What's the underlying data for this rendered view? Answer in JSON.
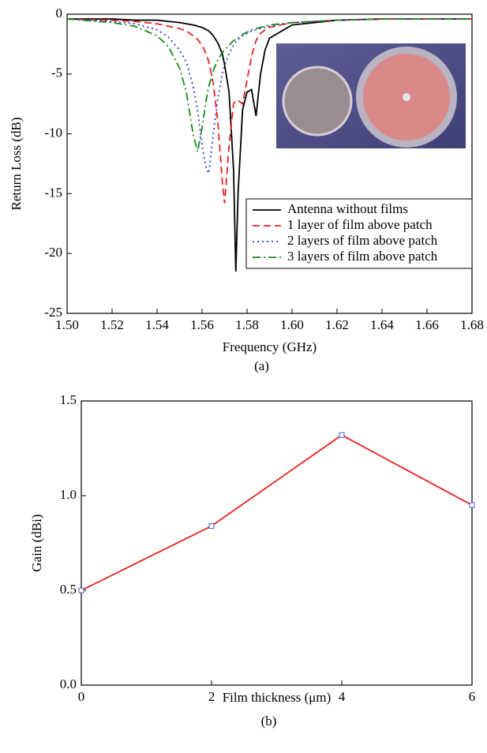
{
  "chart_data": [
    {
      "type": "line",
      "x_label": "Frequency (GHz)",
      "y_label": "Return Loss (dB)",
      "caption": "(a)",
      "x": [
        1.5,
        1.52,
        1.53,
        1.54,
        1.545,
        1.55,
        1.553,
        1.556,
        1.558,
        1.56,
        1.562,
        1.563,
        1.565,
        1.567,
        1.569,
        1.57,
        1.572,
        1.574,
        1.575,
        1.576,
        1.578,
        1.58,
        1.582,
        1.584,
        1.586,
        1.588,
        1.59,
        1.6,
        1.62,
        1.64,
        1.66,
        1.68
      ],
      "series": [
        {
          "name": "Antenna without films",
          "color": "#000000",
          "line_style": "solid",
          "values": [
            -0.4,
            -0.4,
            -0.5,
            -0.5,
            -0.6,
            -0.7,
            -0.8,
            -0.9,
            -1.0,
            -1.1,
            -1.3,
            -1.4,
            -1.8,
            -2.4,
            -3.3,
            -4.2,
            -6.5,
            -13,
            -21.5,
            -15,
            -8,
            -6.5,
            -6.3,
            -8.5,
            -5,
            -3,
            -2,
            -0.9,
            -0.5,
            -0.4,
            -0.4,
            -0.4
          ]
        },
        {
          "name": "1 layer of film above patch",
          "color": "#e8221e",
          "line_style": "dashed",
          "values": [
            -0.4,
            -0.5,
            -0.6,
            -0.8,
            -1.0,
            -1.2,
            -1.4,
            -1.8,
            -2.1,
            -2.6,
            -3.4,
            -4,
            -5.8,
            -9,
            -14,
            -15.8,
            -11,
            -7.5,
            -7.2,
            -7.2,
            -7.5,
            -5.5,
            -3.5,
            -2.2,
            -1.6,
            -1.3,
            -1.1,
            -0.7,
            -0.5,
            -0.4,
            -0.4,
            -0.4
          ]
        },
        {
          "name": "2 layers of film above patch",
          "color": "#2b3ae0",
          "line_style": "dotted",
          "values": [
            -0.4,
            -0.6,
            -0.8,
            -1.3,
            -1.9,
            -3.0,
            -4.0,
            -6,
            -8,
            -11,
            -13,
            -13.3,
            -10,
            -7,
            -5,
            -4.3,
            -3.3,
            -2.6,
            -2.3,
            -2.1,
            -1.8,
            -1.6,
            -1.4,
            -1.3,
            -1.2,
            -1.1,
            -1.0,
            -0.7,
            -0.5,
            -0.4,
            -0.4,
            -0.4
          ]
        },
        {
          "name": "3 layers of film above patch",
          "color": "#1a8a1a",
          "line_style": "dashdot",
          "values": [
            -0.4,
            -0.7,
            -1.0,
            -1.8,
            -2.7,
            -4.5,
            -6.5,
            -10,
            -11.5,
            -9.5,
            -7,
            -6,
            -4.7,
            -3.8,
            -3.2,
            -3,
            -2.6,
            -2.2,
            -2.1,
            -2.0,
            -1.7,
            -1.5,
            -1.3,
            -1.2,
            -1.1,
            -1.0,
            -0.9,
            -0.7,
            -0.5,
            -0.4,
            -0.4,
            -0.4
          ]
        }
      ],
      "xlim": [
        1.5,
        1.68
      ],
      "xticks": [
        {
          "value": 1.5,
          "label": "1.50"
        },
        {
          "value": 1.52,
          "label": "1.52"
        },
        {
          "value": 1.54,
          "label": "1.54"
        },
        {
          "value": 1.56,
          "label": "1.56"
        },
        {
          "value": 1.58,
          "label": "1.58"
        },
        {
          "value": 1.6,
          "label": "1.60"
        },
        {
          "value": 1.62,
          "label": "1.62"
        },
        {
          "value": 1.64,
          "label": "1.64"
        },
        {
          "value": 1.66,
          "label": "1.66"
        },
        {
          "value": 1.68,
          "label": "1.68"
        }
      ],
      "ylim": [
        -25,
        0
      ],
      "yticks": [
        0,
        -5,
        -10,
        -15,
        -20,
        -25
      ],
      "legend": "lower right"
    },
    {
      "type": "line",
      "x_label": "Film thickness (μm)",
      "y_label": "Gain (dBi)",
      "caption": "(b)",
      "x": [
        0,
        2,
        4,
        6
      ],
      "series": [
        {
          "color": "#e8221e",
          "marker_color": "#4a5bd4",
          "line_style": "solid",
          "values": [
            0.5,
            0.84,
            1.32,
            0.95
          ]
        }
      ],
      "xlim": [
        0,
        6
      ],
      "xticks": [
        0,
        2,
        4,
        6
      ],
      "ylim": [
        0,
        1.5
      ],
      "yticks": [
        {
          "value": 0,
          "label": "0.0"
        },
        {
          "value": 0.5,
          "label": "0.5"
        },
        {
          "value": 1.0,
          "label": "1.0"
        },
        {
          "value": 1.5,
          "label": "1.5"
        }
      ]
    }
  ]
}
